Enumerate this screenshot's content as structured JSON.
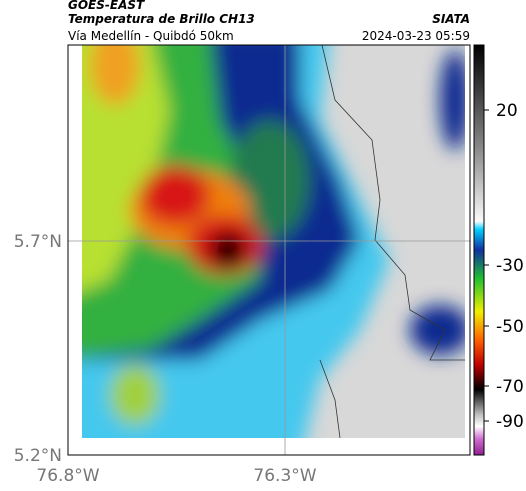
{
  "header": {
    "title": "GOES-EAST",
    "subtitle": "Temperatura de Brillo CH13",
    "source": "SIATA",
    "location": "Vía Medellín - Quibdó 50km",
    "timestamp": "2024-03-23 05:59"
  },
  "map": {
    "lat_labels": [
      "5.7°N",
      "5.2°N"
    ],
    "lon_labels": [
      "76.8°W",
      "76.3°W"
    ]
  },
  "colorbar": {
    "labels": [
      "20",
      "-30",
      "-50",
      "-70",
      "-90"
    ]
  }
}
